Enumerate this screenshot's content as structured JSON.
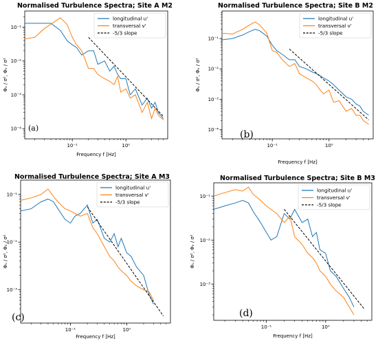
{
  "figure": {
    "colors": {
      "longitudinal": "#1f77b4",
      "transversal": "#ff7f0e",
      "slope": "#000000"
    }
  },
  "chart_data": [
    {
      "type": "line",
      "title": "Normalised Turbulence Spectra; Site A M2",
      "xlabel": "Frequency  f  [Hz]",
      "ylabel": "Φᵤ / σ², Φᵥ / σ²",
      "x_scale": "log",
      "y_scale": "log",
      "xlim": [
        0.013,
        6.0
      ],
      "ylim": [
        5e-05,
        0.3
      ],
      "x_ticks": [
        {
          "value": 0.1,
          "label": "10⁻¹"
        },
        {
          "value": 1,
          "label": "10⁰"
        }
      ],
      "y_ticks": [
        {
          "value": 0.0001,
          "label": "10⁻⁴"
        },
        {
          "value": 0.001,
          "label": "10⁻³"
        },
        {
          "value": 0.01,
          "label": "10⁻²"
        },
        {
          "value": 0.1,
          "label": "10⁻¹"
        }
      ],
      "panel_label": "(a)",
      "legend_position": "top-right",
      "series": [
        {
          "name": "longitudinal u'",
          "key": "longitudinal",
          "x": [
            0.013,
            0.02,
            0.04,
            0.06,
            0.08,
            0.1,
            0.12,
            0.15,
            0.2,
            0.25,
            0.3,
            0.4,
            0.5,
            0.6,
            0.7,
            0.8,
            1.0,
            1.2,
            1.5,
            2.0,
            2.5,
            3.0,
            3.5,
            4.0,
            5.0
          ],
          "y": [
            0.13,
            0.13,
            0.13,
            0.08,
            0.04,
            0.03,
            0.025,
            0.015,
            0.02,
            0.02,
            0.008,
            0.01,
            0.005,
            0.007,
            0.004,
            0.003,
            0.003,
            0.001,
            0.0015,
            0.0005,
            0.0008,
            0.0004,
            0.0006,
            0.0003,
            0.0002
          ]
        },
        {
          "name": "transversal v'",
          "key": "transversal",
          "x": [
            0.013,
            0.02,
            0.03,
            0.045,
            0.06,
            0.08,
            0.1,
            0.12,
            0.15,
            0.2,
            0.25,
            0.3,
            0.4,
            0.5,
            0.6,
            0.7,
            0.8,
            1.0,
            1.2,
            1.5,
            2.0,
            2.5,
            3.0,
            3.5,
            4.0,
            5.0
          ],
          "y": [
            0.045,
            0.05,
            0.09,
            0.14,
            0.19,
            0.12,
            0.05,
            0.03,
            0.02,
            0.006,
            0.006,
            0.004,
            0.003,
            0.0025,
            0.002,
            0.0035,
            0.0012,
            0.0015,
            0.0008,
            0.001,
            0.0003,
            0.0006,
            0.0002,
            0.0004,
            0.00025,
            0.00018
          ]
        },
        {
          "name": "-5/3 slope",
          "key": "slope",
          "dashed": true,
          "x": [
            0.2,
            5.0
          ],
          "y": [
            0.05,
            0.00023
          ]
        }
      ]
    },
    {
      "type": "line",
      "title": "Normalised Turbulence Spectra; Site B M2",
      "xlabel": "Frequency  f  [Hz]",
      "ylabel": "Φᵤ / σ², Φᵥ / σ²",
      "x_scale": "log",
      "y_scale": "log",
      "xlim": [
        0.013,
        6.0
      ],
      "ylim": [
        5e-05,
        0.8
      ],
      "x_ticks": [
        {
          "value": 0.1,
          "label": "10⁻¹"
        },
        {
          "value": 1,
          "label": "10⁰"
        }
      ],
      "y_ticks": [
        {
          "value": 0.0001,
          "label": "10⁻⁴"
        },
        {
          "value": 0.001,
          "label": "10⁻³"
        },
        {
          "value": 0.01,
          "label": "10⁻²"
        },
        {
          "value": 0.1,
          "label": "10⁻¹"
        }
      ],
      "panel_label": "(b)",
      "legend_position": "top-right",
      "series": [
        {
          "name": "longitudinal u'",
          "key": "longitudinal",
          "x": [
            0.013,
            0.02,
            0.03,
            0.04,
            0.05,
            0.06,
            0.08,
            0.1,
            0.12,
            0.15,
            0.2,
            0.25,
            0.3,
            0.4,
            0.5,
            0.6,
            0.7,
            0.8,
            1.0,
            1.2,
            1.5,
            2.0,
            2.5,
            3.0,
            3.5,
            4.0,
            5.0
          ],
          "y": [
            0.09,
            0.1,
            0.13,
            0.17,
            0.2,
            0.18,
            0.12,
            0.06,
            0.04,
            0.03,
            0.02,
            0.02,
            0.012,
            0.01,
            0.008,
            0.007,
            0.006,
            0.005,
            0.004,
            0.003,
            0.002,
            0.0012,
            0.001,
            0.0007,
            0.0006,
            0.0004,
            0.0003
          ]
        },
        {
          "name": "transversal v'",
          "key": "transversal",
          "x": [
            0.013,
            0.02,
            0.03,
            0.04,
            0.05,
            0.06,
            0.08,
            0.1,
            0.12,
            0.15,
            0.2,
            0.25,
            0.3,
            0.4,
            0.5,
            0.6,
            0.7,
            0.8,
            1.0,
            1.2,
            1.5,
            2.0,
            2.5,
            3.0,
            3.5,
            4.0,
            5.0
          ],
          "y": [
            0.15,
            0.14,
            0.2,
            0.28,
            0.35,
            0.28,
            0.15,
            0.04,
            0.035,
            0.02,
            0.012,
            0.015,
            0.007,
            0.005,
            0.004,
            0.003,
            0.002,
            0.0015,
            0.002,
            0.0008,
            0.0009,
            0.0004,
            0.0005,
            0.0003,
            0.0003,
            0.0002,
            0.00015
          ]
        },
        {
          "name": "-5/3 slope",
          "key": "slope",
          "dashed": true,
          "x": [
            0.2,
            5.0
          ],
          "y": [
            0.045,
            0.00021
          ]
        }
      ]
    },
    {
      "type": "line",
      "title": "Normalised Turbulence Spectra; Site A M3",
      "xlabel": "Frequency  f  [Hz]",
      "ylabel": "Φᵤ / σ², Φᵥ / σ²",
      "x_scale": "log",
      "y_scale": "log",
      "xlim": [
        0.013,
        6.0
      ],
      "ylim": [
        0.0002,
        0.2
      ],
      "x_ticks": [
        {
          "value": 0.1,
          "label": "10⁻¹"
        },
        {
          "value": 1,
          "label": "10⁰"
        }
      ],
      "y_ticks": [
        {
          "value": 0.001,
          "label": "10⁻³"
        },
        {
          "value": 0.01,
          "label": "10⁻²"
        },
        {
          "value": 0.1,
          "label": "10⁻¹"
        }
      ],
      "panel_label": "(c)",
      "legend_position": "top-right",
      "series": [
        {
          "name": "longitudinal u'",
          "key": "longitudinal",
          "x": [
            0.013,
            0.02,
            0.03,
            0.04,
            0.05,
            0.06,
            0.08,
            0.1,
            0.12,
            0.15,
            0.2,
            0.25,
            0.3,
            0.4,
            0.5,
            0.6,
            0.7,
            0.8,
            1.0,
            1.2,
            1.5,
            2.0,
            2.5,
            3.0
          ],
          "y": [
            0.045,
            0.05,
            0.07,
            0.08,
            0.07,
            0.05,
            0.03,
            0.025,
            0.035,
            0.04,
            0.06,
            0.025,
            0.03,
            0.012,
            0.01,
            0.015,
            0.008,
            0.012,
            0.006,
            0.005,
            0.003,
            0.002,
            0.0008,
            0.0005
          ]
        },
        {
          "name": "transversal v'",
          "key": "transversal",
          "x": [
            0.013,
            0.02,
            0.03,
            0.04,
            0.05,
            0.06,
            0.08,
            0.1,
            0.12,
            0.15,
            0.2,
            0.25,
            0.3,
            0.4,
            0.5,
            0.6,
            0.7,
            0.8,
            1.0,
            1.2,
            1.5,
            2.0,
            2.5,
            3.0
          ],
          "y": [
            0.075,
            0.085,
            0.1,
            0.13,
            0.09,
            0.07,
            0.05,
            0.045,
            0.04,
            0.035,
            0.04,
            0.02,
            0.015,
            0.008,
            0.005,
            0.004,
            0.003,
            0.0025,
            0.002,
            0.0015,
            0.0012,
            0.001,
            0.0009,
            0.0006
          ]
        },
        {
          "name": "-5/3 slope",
          "key": "slope",
          "dashed": true,
          "x": [
            0.2,
            4.5
          ],
          "y": [
            0.055,
            0.00028
          ]
        }
      ]
    },
    {
      "type": "line",
      "title": "Normalised Turbulence Spectra; Site B M3",
      "xlabel": "Frequency  f  [Hz]",
      "ylabel": "Φᵤ / σ², Φᵥ / σ²",
      "x_scale": "log",
      "y_scale": "log",
      "xlim": [
        0.013,
        6.0
      ],
      "ylim": [
        0.00015,
        0.2
      ],
      "x_ticks": [
        {
          "value": 0.1,
          "label": "10⁻¹"
        },
        {
          "value": 1,
          "label": "10⁰"
        }
      ],
      "y_ticks": [
        {
          "value": 0.001,
          "label": "10⁻³"
        },
        {
          "value": 0.01,
          "label": "10⁻²"
        },
        {
          "value": 0.1,
          "label": "10⁻¹"
        }
      ],
      "panel_label": "(d)",
      "legend_position": "top-right",
      "series": [
        {
          "name": "longitudinal u'",
          "key": "longitudinal",
          "x": [
            0.013,
            0.02,
            0.03,
            0.04,
            0.05,
            0.06,
            0.08,
            0.1,
            0.12,
            0.15,
            0.2,
            0.25,
            0.3,
            0.4,
            0.5,
            0.6,
            0.7,
            0.8,
            1.0,
            1.2,
            1.5,
            2.0,
            2.5,
            3.0
          ],
          "y": [
            0.05,
            0.06,
            0.07,
            0.08,
            0.07,
            0.045,
            0.025,
            0.015,
            0.01,
            0.012,
            0.04,
            0.03,
            0.05,
            0.025,
            0.03,
            0.012,
            0.015,
            0.006,
            0.005,
            0.002,
            0.0015,
            0.0008,
            0.0005,
            0.0003
          ]
        },
        {
          "name": "transversal v'",
          "key": "transversal",
          "x": [
            0.013,
            0.02,
            0.03,
            0.04,
            0.05,
            0.06,
            0.08,
            0.1,
            0.12,
            0.15,
            0.2,
            0.25,
            0.3,
            0.4,
            0.5,
            0.6,
            0.7,
            0.8,
            1.0,
            1.2,
            1.5,
            2.0,
            2.5,
            3.0
          ],
          "y": [
            0.1,
            0.12,
            0.14,
            0.13,
            0.16,
            0.11,
            0.08,
            0.06,
            0.05,
            0.04,
            0.025,
            0.035,
            0.012,
            0.008,
            0.005,
            0.004,
            0.003,
            0.002,
            0.0015,
            0.001,
            0.0007,
            0.0005,
            0.0003,
            0.0002
          ]
        },
        {
          "name": "-5/3 slope",
          "key": "slope",
          "dashed": true,
          "x": [
            0.2,
            4.5
          ],
          "y": [
            0.05,
            0.00027
          ]
        }
      ]
    }
  ]
}
